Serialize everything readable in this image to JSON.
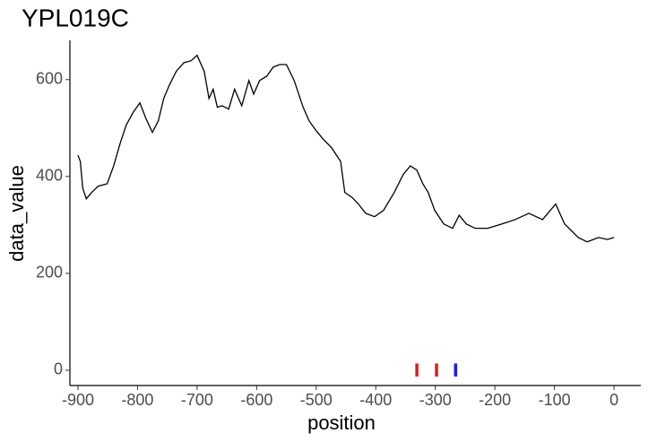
{
  "chart_data": {
    "type": "line",
    "title": "YPL019C",
    "x_label": "position",
    "y_label": "data_value",
    "xlim": [
      -913.5,
      45
    ],
    "ylim": [
      -31.5,
      681
    ],
    "xticks": [
      -900,
      -800,
      -700,
      -600,
      -500,
      -400,
      -300,
      -200,
      -100,
      0
    ],
    "yticks": [
      0,
      200,
      400,
      600
    ],
    "grid": false,
    "series": [
      {
        "name": "data_value",
        "color": "#000000",
        "x": [
          -900,
          -896,
          -892,
          -886,
          -877,
          -866,
          -851,
          -840,
          -829,
          -819,
          -807,
          -796,
          -786,
          -775,
          -765,
          -756,
          -746,
          -735,
          -722,
          -710,
          -700,
          -688,
          -680,
          -673,
          -666,
          -658,
          -647,
          -637,
          -625,
          -613,
          -605,
          -595,
          -583,
          -572,
          -561,
          -550,
          -537,
          -522,
          -512,
          -501,
          -489,
          -474,
          -459,
          -452,
          -440,
          -429,
          -417,
          -402,
          -387,
          -369,
          -354,
          -342,
          -331,
          -321,
          -312,
          -301,
          -286,
          -271,
          -260,
          -248,
          -233,
          -212,
          -188,
          -166,
          -143,
          -120,
          -98,
          -83,
          -60,
          -45,
          -26,
          -11,
          0
        ],
        "values": [
          444,
          431,
          376,
          354,
          367,
          380,
          385,
          422,
          469,
          506,
          533,
          552,
          520,
          491,
          515,
          561,
          590,
          617,
          635,
          639,
          650,
          617,
          561,
          580,
          543,
          546,
          539,
          580,
          546,
          598,
          570,
          598,
          607,
          626,
          631,
          631,
          598,
          543,
          515,
          496,
          478,
          459,
          431,
          367,
          357,
          343,
          324,
          317,
          330,
          367,
          404,
          422,
          413,
          385,
          367,
          330,
          302,
          293,
          320,
          302,
          293,
          293,
          302,
          311,
          324,
          311,
          343,
          302,
          274,
          265,
          274,
          270,
          274
        ]
      }
    ],
    "markers": [
      {
        "x": -331,
        "ymin": -13,
        "ymax": 14,
        "color": "#e41a1c"
      },
      {
        "x": -298,
        "ymin": -13,
        "ymax": 14,
        "color": "#e41a1c"
      },
      {
        "x": -266,
        "ymin": -13,
        "ymax": 14,
        "color": "#1a1aff"
      }
    ]
  }
}
